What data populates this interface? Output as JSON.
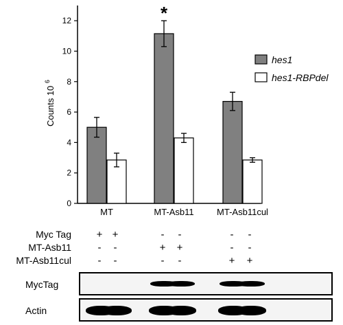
{
  "chart_data": {
    "type": "bar",
    "categories": [
      "MT",
      "MT-Asb11",
      "MT-Asb11cul"
    ],
    "series": [
      {
        "name": "hes1",
        "values": [
          5.0,
          11.15,
          6.7
        ],
        "errors": [
          0.65,
          0.85,
          0.6
        ],
        "color": "#808080"
      },
      {
        "name": "hes1-RBPdel",
        "values": [
          2.85,
          4.3,
          2.85
        ],
        "errors": [
          0.45,
          0.3,
          0.15
        ],
        "color": "#ffffff"
      }
    ],
    "ylabel_main": "Counts 10",
    "ylabel_exp": "6",
    "ylim": [
      0,
      13
    ],
    "yticks": [
      "0",
      "2",
      "4",
      "6",
      "8",
      "10",
      "12"
    ],
    "annotation": "*",
    "legend_placement": "right"
  },
  "blot": {
    "rows": [
      {
        "label": "Myc Tag",
        "signs": [
          "+",
          "+",
          "-",
          "-",
          "-",
          "-"
        ]
      },
      {
        "label": "MT-Asb11",
        "signs": [
          "-",
          "-",
          "+",
          "+",
          "-",
          "-"
        ]
      },
      {
        "label": "MT-Asb11cul",
        "signs": [
          "-",
          "-",
          "-",
          "-",
          "+",
          "+"
        ]
      }
    ],
    "panels": [
      {
        "label": "MycTag",
        "bands": [
          0,
          0,
          1,
          1,
          1,
          1
        ]
      },
      {
        "label": "Actin",
        "bands": [
          1,
          1,
          1,
          1,
          1,
          1
        ]
      }
    ]
  }
}
